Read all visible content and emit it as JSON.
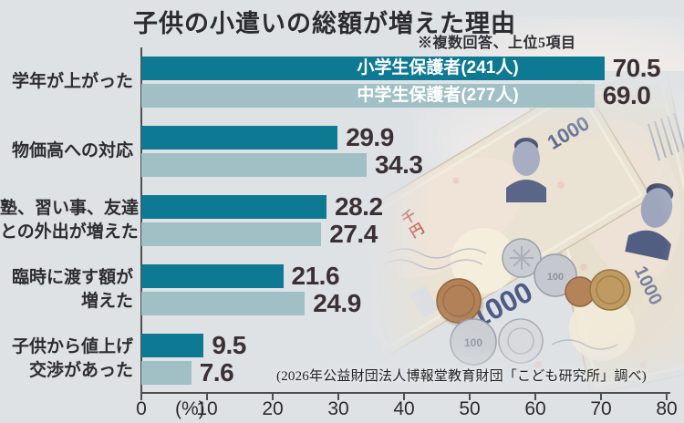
{
  "title": "子供の小遣いの総額が増えた理由",
  "note": "※複数回答、上位5項目",
  "source": "(2026年公益財団法人博報堂教育財団「こども研究所」調べ)",
  "colors": {
    "background": "#dfe2e5",
    "bar_primary": "#0e7992",
    "bar_secondary": "#a0c0c6"
  },
  "chart_data": {
    "type": "bar",
    "orientation": "horizontal",
    "title": "子供の小遣いの総額が増えた理由",
    "unit": "%",
    "xlim": [
      0,
      80
    ],
    "x_ticks": [
      0,
      10,
      20,
      30,
      40,
      50,
      60,
      70,
      80
    ],
    "x_unit_label": "(%)",
    "grid": false,
    "legend_position": "inside-first-bars",
    "categories": [
      "学年が上がった",
      "物価高への対応",
      "塾、習い事、友達との外出が増えた",
      "臨時に渡す額が増えた",
      "子供から値上げ交渉があった"
    ],
    "category_lines": [
      [
        "学年が上がった"
      ],
      [
        "物価高への対応"
      ],
      [
        "塾、習い事、友達",
        "との外出が増えた"
      ],
      [
        "臨時に渡す額が",
        "増えた"
      ],
      [
        "子供から値上げ",
        "交渉があった"
      ]
    ],
    "series": [
      {
        "name": "小学生保護者(241人)",
        "color": "#0e7992",
        "values": [
          70.5,
          29.9,
          28.2,
          21.6,
          9.5
        ],
        "value_labels": [
          "70.5",
          "29.9",
          "28.2",
          "21.6",
          "9.5"
        ]
      },
      {
        "name": "中学生保護者(277人)",
        "color": "#a0c0c6",
        "values": [
          69.0,
          34.3,
          27.4,
          24.9,
          7.6
        ],
        "value_labels": [
          "69.0",
          "34.3",
          "27.4",
          "24.9",
          "7.6"
        ]
      }
    ]
  },
  "photo": {
    "banknote_value": "1000",
    "kanji": [
      "千",
      "円"
    ],
    "coin_value": "100"
  }
}
